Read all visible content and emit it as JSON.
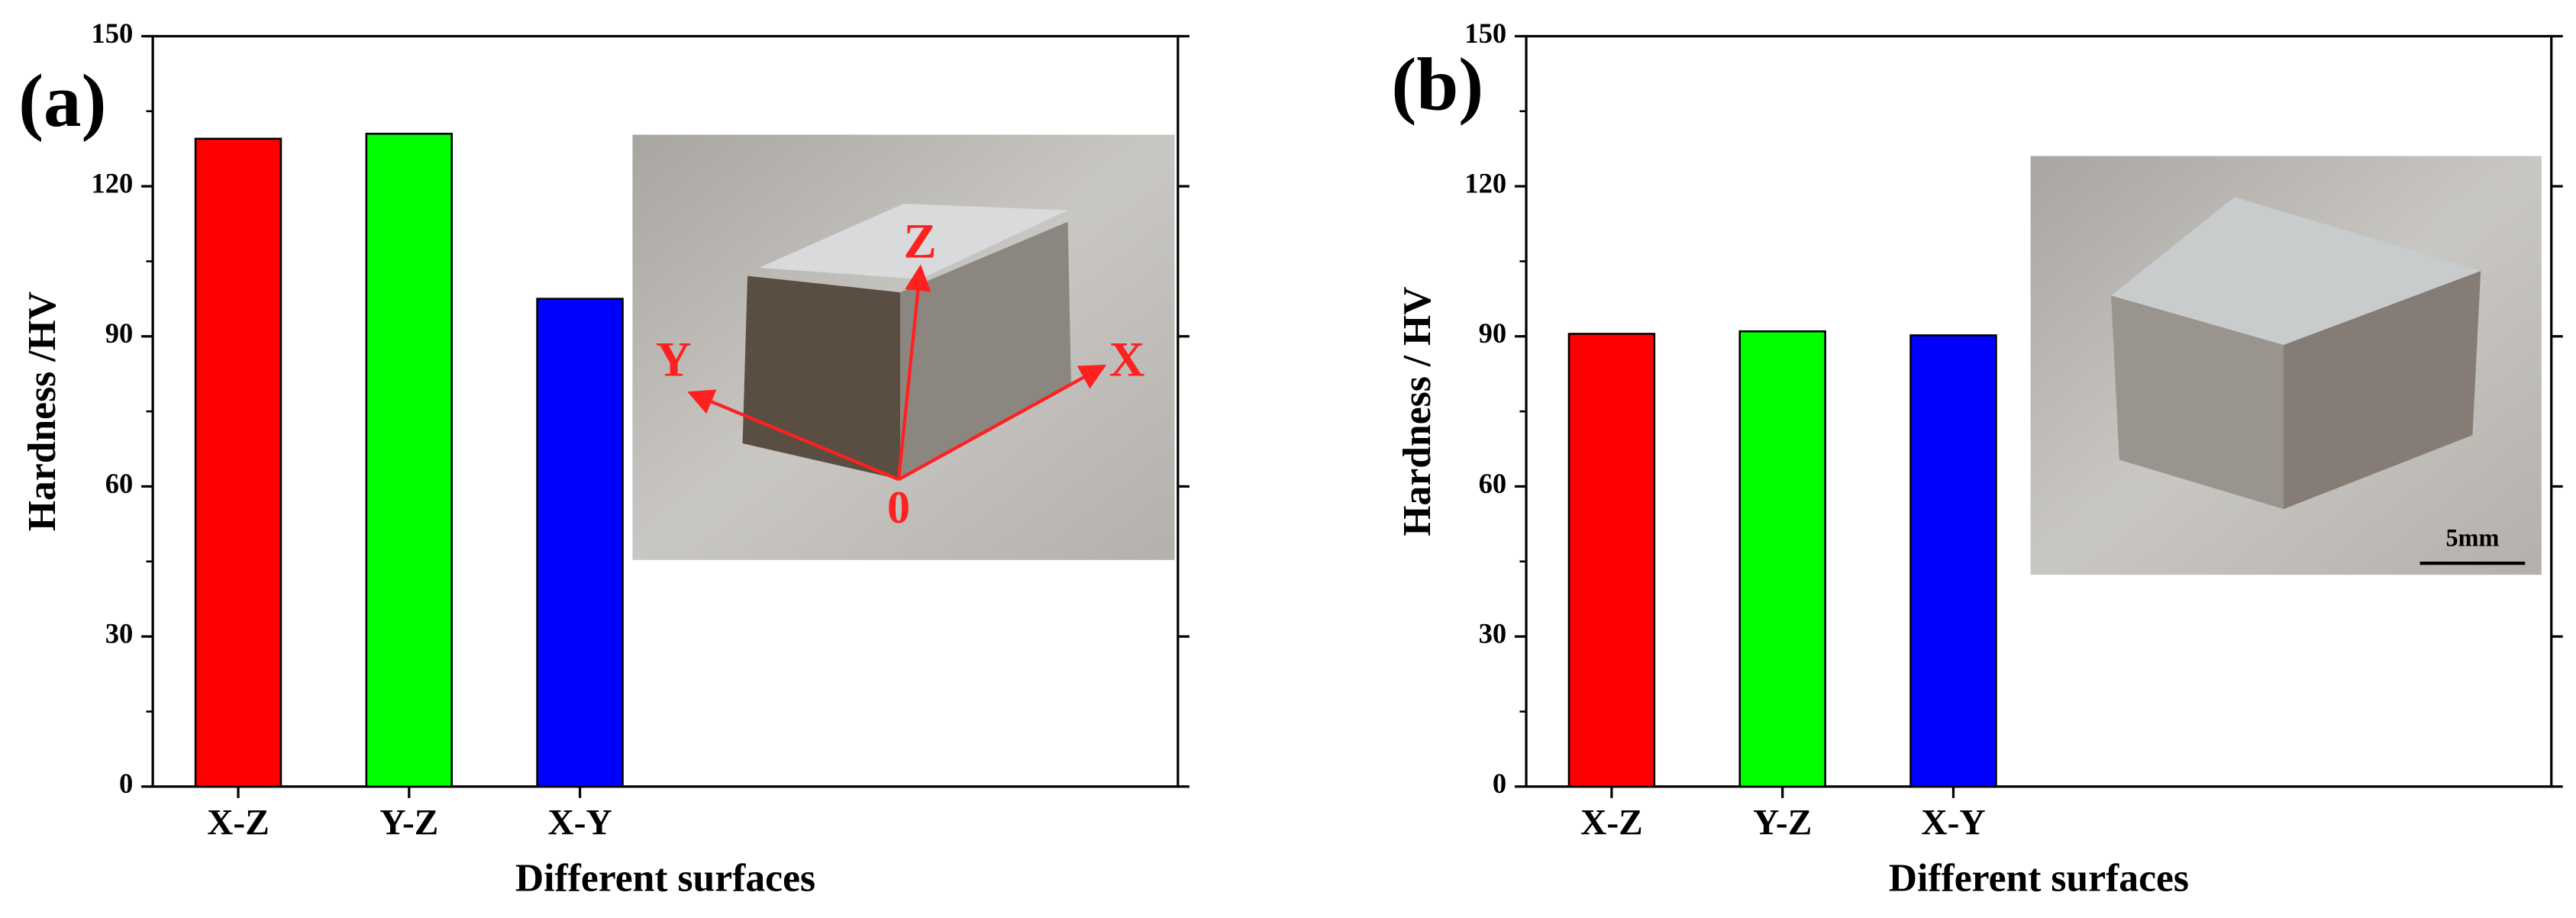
{
  "chart_data": [
    {
      "type": "bar",
      "panel_label": "(a)",
      "x_label": "Different surfaces",
      "y_label": "Hardness /HV",
      "categories": [
        "X-Z",
        "Y-Z",
        "X-Y"
      ],
      "values": [
        129.5,
        130.5,
        97.5
      ],
      "colors": [
        "#ff0000",
        "#00ff00",
        "#0000ff"
      ],
      "ylim": [
        0,
        150
      ],
      "yticks": [
        0,
        30,
        60,
        90,
        120,
        150
      ],
      "inset_labels": [
        "Z",
        "Y",
        "X",
        "0"
      ]
    },
    {
      "type": "bar",
      "panel_label": "(b)",
      "x_label": "Different surfaces",
      "y_label": "Hardness / HV",
      "categories": [
        "X-Z",
        "Y-Z",
        "X-Y"
      ],
      "values": [
        90.5,
        91,
        90.2
      ],
      "colors": [
        "#ff0000",
        "#00ff00",
        "#0000ff"
      ],
      "ylim": [
        0,
        150
      ],
      "yticks": [
        0,
        30,
        60,
        90,
        120,
        150
      ],
      "inset_labels": [
        "5mm"
      ]
    }
  ]
}
